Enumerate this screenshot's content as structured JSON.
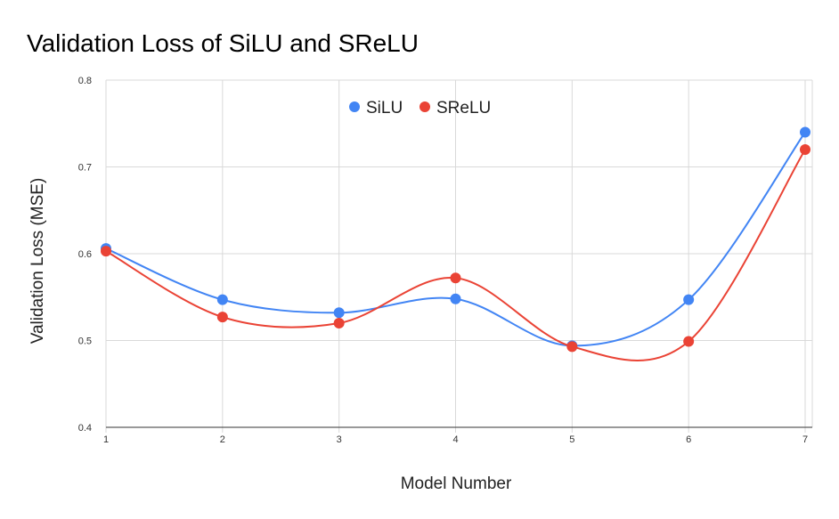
{
  "chart_data": {
    "type": "line",
    "title": "Validation Loss of SiLU and SReLU",
    "xlabel": "Model Number",
    "ylabel": "Validation Loss (MSE)",
    "x": [
      1,
      2,
      3,
      4,
      5,
      6,
      7
    ],
    "xticks": [
      "1",
      "2",
      "3",
      "4",
      "5",
      "6",
      "7"
    ],
    "xlim": [
      1,
      7
    ],
    "ylim": [
      0.4,
      0.8
    ],
    "yticks": [
      "0.4",
      "0.5",
      "0.6",
      "0.7",
      "0.8"
    ],
    "ytick_values": [
      0.4,
      0.5,
      0.6,
      0.7,
      0.8
    ],
    "grid": true,
    "smooth": true,
    "legend_position": "top",
    "series": [
      {
        "name": "SiLU",
        "color": "#4285F4",
        "values": [
          0.606,
          0.547,
          0.532,
          0.548,
          0.494,
          0.547,
          0.74
        ]
      },
      {
        "name": "SReLU",
        "color": "#EA4335",
        "values": [
          0.603,
          0.527,
          0.52,
          0.572,
          0.493,
          0.499,
          0.72
        ]
      }
    ]
  }
}
